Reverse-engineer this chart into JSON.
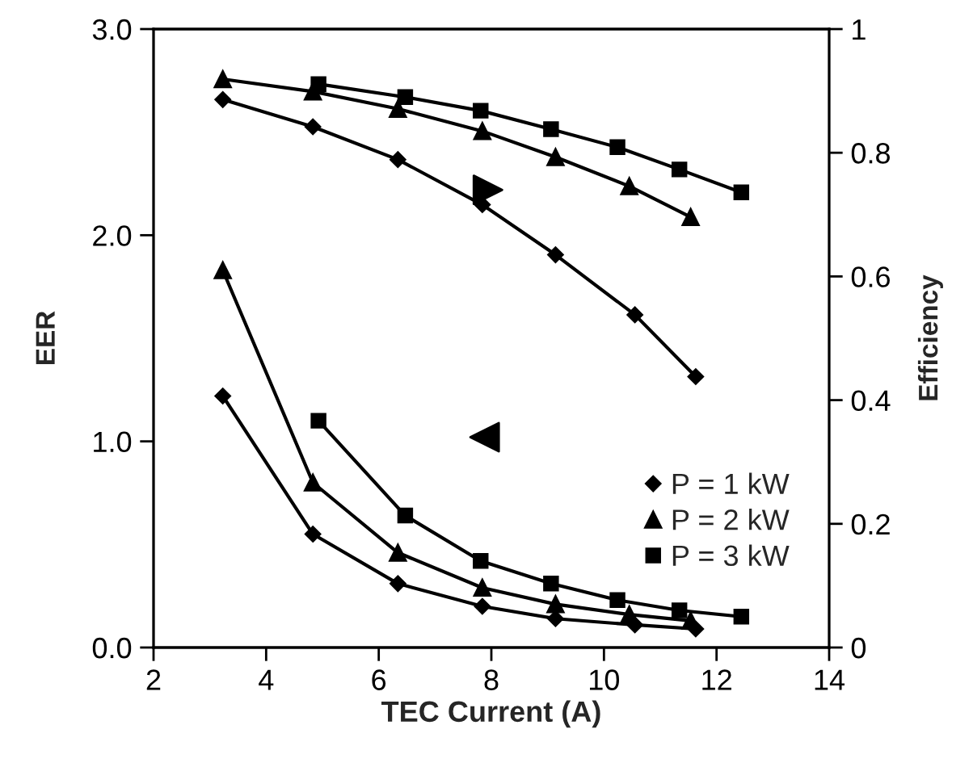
{
  "chart_data": {
    "type": "line",
    "xlabel": "TEC Current (A)",
    "ylabel": "EER",
    "y2label": "Efficiency",
    "xlim": [
      2,
      14
    ],
    "xticks": [
      2,
      4,
      6,
      8,
      10,
      12,
      14
    ],
    "ylim": [
      0,
      3
    ],
    "yticks": [
      {
        "value": 0,
        "label": "0.0"
      },
      {
        "value": 1,
        "label": "1.0"
      },
      {
        "value": 2,
        "label": "2.0"
      },
      {
        "value": 3,
        "label": "3.0"
      }
    ],
    "y2lim": [
      0,
      1
    ],
    "y2ticks": [
      0,
      0.2,
      0.4,
      0.6,
      0.8,
      1
    ],
    "grid": false,
    "legend": "lower right",
    "line_style": "solid",
    "series": [
      {
        "name": "P = 1 kW",
        "color": "#000000",
        "marker": "diamond",
        "x": [
          3.23,
          4.83,
          6.34,
          7.84,
          9.14,
          10.55,
          11.63
        ],
        "values": [
          1.22,
          0.55,
          0.31,
          0.2,
          0.14,
          0.11,
          0.09
        ]
      },
      {
        "name": "P = 2 kW",
        "color": "#000000",
        "marker": "triangle",
        "x": [
          3.23,
          4.83,
          6.34,
          7.84,
          9.14,
          10.45,
          11.54
        ],
        "values": [
          1.83,
          0.8,
          0.46,
          0.29,
          0.21,
          0.16,
          0.13
        ]
      },
      {
        "name": "P = 3 kW",
        "color": "#000000",
        "marker": "square",
        "x": [
          4.93,
          6.47,
          7.81,
          9.06,
          10.24,
          11.34,
          12.44
        ],
        "values": [
          1.1,
          0.64,
          0.42,
          0.31,
          0.23,
          0.18,
          0.15
        ]
      },
      {
        "color": "#000000",
        "marker": "diamond",
        "axis": "y2",
        "x": [
          3.23,
          4.83,
          6.34,
          7.84,
          9.14,
          10.55,
          11.63
        ],
        "values": [
          0.886,
          0.842,
          0.789,
          0.716,
          0.635,
          0.538,
          0.438
        ]
      },
      {
        "color": "#000000",
        "marker": "triangle",
        "axis": "y2",
        "x": [
          3.23,
          4.83,
          6.34,
          7.84,
          9.14,
          10.45,
          11.54
        ],
        "values": [
          0.919,
          0.899,
          0.871,
          0.835,
          0.793,
          0.746,
          0.696
        ]
      },
      {
        "color": "#000000",
        "marker": "square",
        "axis": "y2",
        "x": [
          4.93,
          6.47,
          7.81,
          9.06,
          10.24,
          11.34,
          12.44
        ],
        "values": [
          0.911,
          0.89,
          0.868,
          0.838,
          0.809,
          0.773,
          0.736
        ]
      }
    ]
  }
}
